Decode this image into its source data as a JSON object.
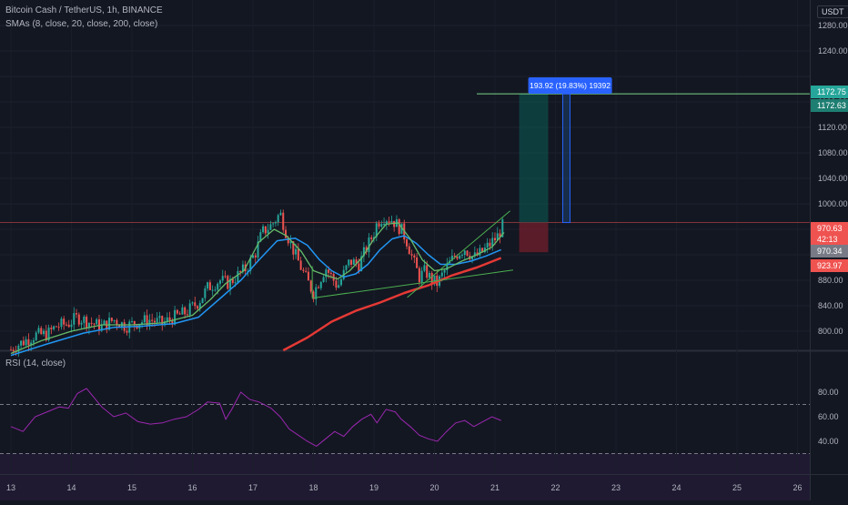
{
  "header": {
    "symbol_line": "Bitcoin Cash / TetherUS, 1h, BINANCE",
    "sma_line": "SMAs (8, close, 20, close, 200, close)",
    "rsi_line": "RSI (14, close)",
    "currency": "USDT"
  },
  "price_axis": {
    "ticks": [
      800,
      840,
      880,
      920,
      960,
      1000,
      1040,
      1080,
      1120,
      1160,
      1200,
      1240,
      1280
    ],
    "tick_labels": [
      "800.00",
      "840.00",
      "880.00",
      "",
      "",
      "1000.00",
      "1040.00",
      "1080.00",
      "1120.00",
      "1160.00",
      "",
      "1240.00",
      "1280.00"
    ]
  },
  "rsi_axis": {
    "ticks": [
      40,
      60,
      80
    ],
    "tick_labels": [
      "40.00",
      "60.00",
      "80.00"
    ],
    "upper_band": 70,
    "lower_band": 30
  },
  "badges": [
    {
      "label": "1172.75",
      "color": "#26a69a"
    },
    {
      "label": "1172.63",
      "color": "#1e7e72"
    },
    {
      "label": "970.63",
      "color": "#ef5350"
    },
    {
      "label": "42:13",
      "color": "#ef5350"
    },
    {
      "label": "970.34",
      "color": "#787b86"
    },
    {
      "label": "923.97",
      "color": "#ef5350"
    }
  ],
  "measure_label": "193.92 (19.83%) 19392",
  "chart_data": [
    {
      "type": "candlestick",
      "x_ticks": [
        "13",
        "14",
        "15",
        "16",
        "17",
        "18",
        "19",
        "20",
        "21",
        "22",
        "23",
        "24",
        "25",
        "26"
      ],
      "ylim": [
        780,
        1300
      ],
      "close_path": [
        [
          13.0,
          771
        ],
        [
          13.1,
          778
        ],
        [
          13.4,
          794
        ],
        [
          13.6,
          795
        ],
        [
          13.75,
          808
        ],
        [
          13.95,
          812
        ],
        [
          14.1,
          822
        ],
        [
          14.3,
          814
        ],
        [
          14.5,
          807
        ],
        [
          14.7,
          818
        ],
        [
          14.9,
          808
        ],
        [
          15.1,
          814
        ],
        [
          15.3,
          818
        ],
        [
          15.5,
          812
        ],
        [
          15.7,
          822
        ],
        [
          15.9,
          830
        ],
        [
          16.1,
          846
        ],
        [
          16.25,
          868
        ],
        [
          16.45,
          880
        ],
        [
          16.6,
          875
        ],
        [
          16.75,
          888
        ],
        [
          16.9,
          900
        ],
        [
          17.05,
          925
        ],
        [
          17.15,
          955
        ],
        [
          17.3,
          966
        ],
        [
          17.45,
          985
        ],
        [
          17.55,
          955
        ],
        [
          17.7,
          920
        ],
        [
          17.85,
          888
        ],
        [
          18.0,
          860
        ],
        [
          18.1,
          880
        ],
        [
          18.2,
          900
        ],
        [
          18.3,
          885
        ],
        [
          18.4,
          870
        ],
        [
          18.5,
          890
        ],
        [
          18.6,
          910
        ],
        [
          18.75,
          905
        ],
        [
          18.9,
          935
        ],
        [
          19.0,
          955
        ],
        [
          19.05,
          970
        ],
        [
          19.15,
          980
        ],
        [
          19.3,
          975
        ],
        [
          19.45,
          960
        ],
        [
          19.55,
          940
        ],
        [
          19.65,
          910
        ],
        [
          19.75,
          885
        ],
        [
          19.85,
          895
        ],
        [
          19.95,
          880
        ],
        [
          20.05,
          875
        ],
        [
          20.2,
          900
        ],
        [
          20.35,
          920
        ],
        [
          20.5,
          930
        ],
        [
          20.65,
          915
        ],
        [
          20.8,
          925
        ],
        [
          20.9,
          935
        ],
        [
          21.05,
          950
        ],
        [
          21.15,
          970
        ]
      ],
      "sma_8_path": [
        [
          13.0,
          765
        ],
        [
          13.5,
          785
        ],
        [
          14.0,
          800
        ],
        [
          14.5,
          810
        ],
        [
          15.0,
          810
        ],
        [
          15.5,
          813
        ],
        [
          16.0,
          825
        ],
        [
          16.3,
          850
        ],
        [
          16.55,
          875
        ],
        [
          16.85,
          895
        ],
        [
          17.1,
          940
        ],
        [
          17.35,
          960
        ],
        [
          17.55,
          950
        ],
        [
          17.8,
          925
        ],
        [
          18.0,
          895
        ],
        [
          18.2,
          888
        ],
        [
          18.4,
          882
        ],
        [
          18.6,
          895
        ],
        [
          18.8,
          915
        ],
        [
          19.0,
          945
        ],
        [
          19.2,
          968
        ],
        [
          19.4,
          970
        ],
        [
          19.6,
          945
        ],
        [
          19.8,
          912
        ],
        [
          20.0,
          895
        ],
        [
          20.2,
          898
        ],
        [
          20.45,
          910
        ],
        [
          20.7,
          920
        ],
        [
          20.95,
          932
        ],
        [
          21.15,
          955
        ]
      ],
      "sma_20_path": [
        [
          13.0,
          762
        ],
        [
          13.6,
          780
        ],
        [
          14.2,
          797
        ],
        [
          14.7,
          806
        ],
        [
          15.2,
          808
        ],
        [
          15.7,
          812
        ],
        [
          16.1,
          822
        ],
        [
          16.5,
          855
        ],
        [
          16.8,
          880
        ],
        [
          17.1,
          912
        ],
        [
          17.4,
          942
        ],
        [
          17.7,
          946
        ],
        [
          17.9,
          935
        ],
        [
          18.1,
          912
        ],
        [
          18.3,
          895
        ],
        [
          18.5,
          885
        ],
        [
          18.7,
          890
        ],
        [
          18.9,
          905
        ],
        [
          19.1,
          928
        ],
        [
          19.3,
          945
        ],
        [
          19.5,
          950
        ],
        [
          19.7,
          938
        ],
        [
          19.9,
          920
        ],
        [
          20.1,
          905
        ],
        [
          20.35,
          905
        ],
        [
          20.6,
          910
        ],
        [
          20.85,
          918
        ],
        [
          21.1,
          928
        ]
      ],
      "sma_200_path": [
        [
          17.5,
          770
        ],
        [
          17.9,
          790
        ],
        [
          18.3,
          815
        ],
        [
          18.7,
          832
        ],
        [
          19.1,
          845
        ],
        [
          19.5,
          860
        ],
        [
          19.9,
          872
        ],
        [
          20.3,
          888
        ],
        [
          20.7,
          900
        ],
        [
          21.1,
          915
        ]
      ],
      "trendlines": [
        {
          "from": [
            17.98,
            902
          ],
          "to": [
            17.98,
            852
          ]
        },
        {
          "from": [
            17.98,
            852
          ],
          "to": [
            21.3,
            896
          ]
        },
        {
          "from": [
            19.55,
            853
          ],
          "to": [
            21.25,
            989
          ]
        }
      ],
      "position": {
        "entry": 970.63,
        "target": 1172.63,
        "stop": 923.97
      },
      "last_price": 970.63
    },
    {
      "type": "line",
      "title": "RSI (14, close)",
      "x_ticks": [
        "13",
        "14",
        "15",
        "16",
        "17",
        "18",
        "19",
        "20",
        "21",
        "22",
        "23",
        "24",
        "25",
        "26"
      ],
      "ylim": [
        27,
        88
      ],
      "bands": [
        30,
        70
      ],
      "series": [
        {
          "points": [
            [
              13.0,
              52
            ],
            [
              13.2,
              48
            ],
            [
              13.4,
              60
            ],
            [
              13.6,
              64
            ],
            [
              13.8,
              68
            ],
            [
              13.95,
              67
            ],
            [
              14.1,
              79
            ],
            [
              14.25,
              83
            ],
            [
              14.35,
              77
            ],
            [
              14.5,
              68
            ],
            [
              14.7,
              60
            ],
            [
              14.9,
              63
            ],
            [
              15.1,
              56
            ],
            [
              15.3,
              54
            ],
            [
              15.5,
              55
            ],
            [
              15.7,
              58
            ],
            [
              15.9,
              60
            ],
            [
              16.1,
              66
            ],
            [
              16.25,
              72
            ],
            [
              16.45,
              71
            ],
            [
              16.55,
              58
            ],
            [
              16.65,
              66
            ],
            [
              16.8,
              80
            ],
            [
              16.95,
              74
            ],
            [
              17.1,
              72
            ],
            [
              17.3,
              67
            ],
            [
              17.45,
              60
            ],
            [
              17.6,
              50
            ],
            [
              17.75,
              45
            ],
            [
              17.9,
              40
            ],
            [
              18.05,
              36
            ],
            [
              18.2,
              42
            ],
            [
              18.35,
              48
            ],
            [
              18.5,
              44
            ],
            [
              18.65,
              52
            ],
            [
              18.8,
              58
            ],
            [
              18.95,
              62
            ],
            [
              19.05,
              55
            ],
            [
              19.2,
              66
            ],
            [
              19.35,
              64
            ],
            [
              19.45,
              58
            ],
            [
              19.6,
              52
            ],
            [
              19.75,
              45
            ],
            [
              19.9,
              42
            ],
            [
              20.05,
              40
            ],
            [
              20.2,
              48
            ],
            [
              20.35,
              55
            ],
            [
              20.5,
              57
            ],
            [
              20.65,
              52
            ],
            [
              20.8,
              56
            ],
            [
              20.95,
              60
            ],
            [
              21.1,
              57
            ]
          ]
        }
      ]
    }
  ]
}
